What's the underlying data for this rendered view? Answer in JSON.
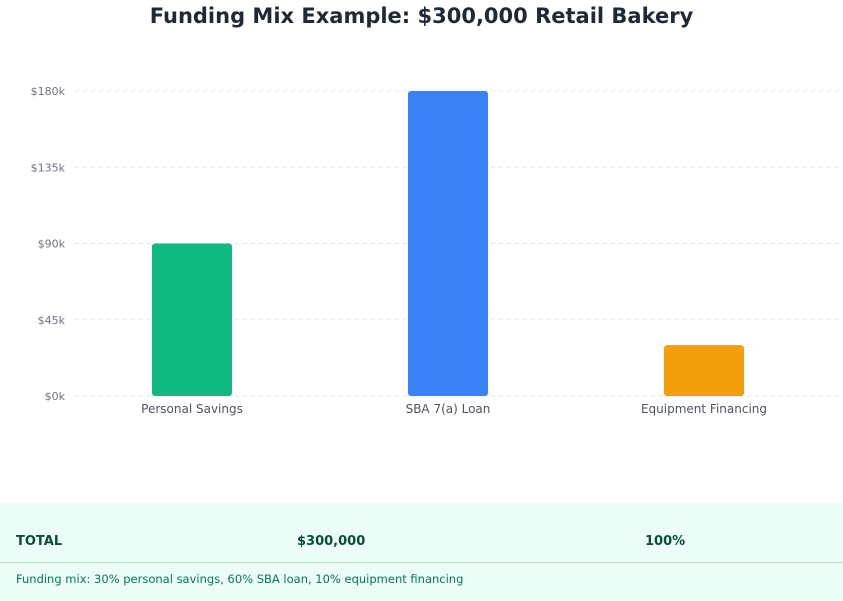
{
  "chart_data": {
    "type": "bar",
    "title": "Funding Mix Example: $300,000 Retail Bakery",
    "categories": [
      "Personal Savings",
      "SBA 7(a) Loan",
      "Equipment Financing"
    ],
    "values": [
      90000,
      180000,
      30000
    ],
    "colors": [
      "#10b981",
      "#3b82f6",
      "#f59e0b"
    ],
    "ylim": [
      0,
      180000
    ],
    "yticks": [
      0,
      45000,
      90000,
      135000,
      180000
    ],
    "ytick_labels": [
      "$0k",
      "$45k",
      "$90k",
      "$135k",
      "$180k"
    ],
    "grid": true
  },
  "summary": {
    "label": "TOTAL",
    "amount": "$300,000",
    "percent": "100%",
    "note": "Funding mix: 30% personal savings, 60% SBA loan, 10% equipment financing"
  }
}
